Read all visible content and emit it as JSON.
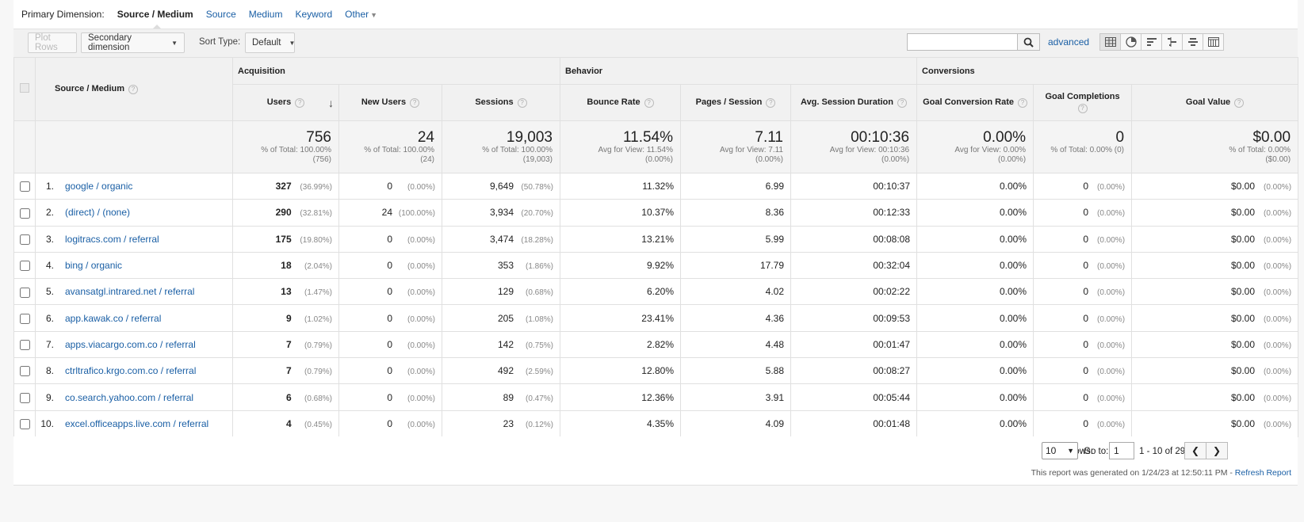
{
  "dimension_bar": {
    "label": "Primary Dimension:",
    "active": "Source / Medium",
    "options": [
      "Source",
      "Medium",
      "Keyword"
    ],
    "other": "Other"
  },
  "toolbar": {
    "plot_rows": "Plot Rows",
    "secondary_dimension": "Secondary dimension",
    "sort_type_label": "Sort Type:",
    "sort_type_value": "Default",
    "search_value": "",
    "advanced": "advanced",
    "view_icons": [
      "table-view-icon",
      "pie-view-icon",
      "performance-view-icon",
      "comparison-view-icon",
      "term-cloud-view-icon",
      "pivot-view-icon"
    ]
  },
  "table": {
    "groups": [
      "Acquisition",
      "Behavior",
      "Conversions"
    ],
    "dimension_header": "Source / Medium",
    "columns": [
      "Users",
      "New Users",
      "Sessions",
      "Bounce Rate",
      "Pages / Session",
      "Avg. Session Duration",
      "Goal Conversion Rate",
      "Goal Completions",
      "Goal Value"
    ],
    "totals": [
      {
        "value": "756",
        "sub1": "% of Total: 100.00%",
        "sub2": "(756)"
      },
      {
        "value": "24",
        "sub1": "% of Total: 100.00%",
        "sub2": "(24)"
      },
      {
        "value": "19,003",
        "sub1": "% of Total: 100.00%",
        "sub2": "(19,003)"
      },
      {
        "value": "11.54%",
        "sub1": "Avg for View: 11.54%",
        "sub2": "(0.00%)"
      },
      {
        "value": "7.11",
        "sub1": "Avg for View: 7.11",
        "sub2": "(0.00%)"
      },
      {
        "value": "00:10:36",
        "sub1": "Avg for View: 00:10:36",
        "sub2": "(0.00%)"
      },
      {
        "value": "0.00%",
        "sub1": "Avg for View: 0.00%",
        "sub2": "(0.00%)"
      },
      {
        "value": "0",
        "sub1": "% of Total: 0.00% (0)",
        "sub2": ""
      },
      {
        "value": "$0.00",
        "sub1": "% of Total: 0.00%",
        "sub2": "($0.00)"
      }
    ],
    "rows": [
      {
        "idx": "1.",
        "name": "google / organic",
        "users": "327",
        "users_pct": "(36.99%)",
        "new_users": "0",
        "new_users_pct": "(0.00%)",
        "sessions": "9,649",
        "sessions_pct": "(50.78%)",
        "bounce": "11.32%",
        "pages": "6.99",
        "duration": "00:10:37",
        "conv_rate": "0.00%",
        "completions": "0",
        "completions_pct": "(0.00%)",
        "goal_value": "$0.00",
        "goal_value_pct": "(0.00%)"
      },
      {
        "idx": "2.",
        "name": "(direct) / (none)",
        "users": "290",
        "users_pct": "(32.81%)",
        "new_users": "24",
        "new_users_pct": "(100.00%)",
        "sessions": "3,934",
        "sessions_pct": "(20.70%)",
        "bounce": "10.37%",
        "pages": "8.36",
        "duration": "00:12:33",
        "conv_rate": "0.00%",
        "completions": "0",
        "completions_pct": "(0.00%)",
        "goal_value": "$0.00",
        "goal_value_pct": "(0.00%)"
      },
      {
        "idx": "3.",
        "name": "logitracs.com / referral",
        "users": "175",
        "users_pct": "(19.80%)",
        "new_users": "0",
        "new_users_pct": "(0.00%)",
        "sessions": "3,474",
        "sessions_pct": "(18.28%)",
        "bounce": "13.21%",
        "pages": "5.99",
        "duration": "00:08:08",
        "conv_rate": "0.00%",
        "completions": "0",
        "completions_pct": "(0.00%)",
        "goal_value": "$0.00",
        "goal_value_pct": "(0.00%)"
      },
      {
        "idx": "4.",
        "name": "bing / organic",
        "users": "18",
        "users_pct": "(2.04%)",
        "new_users": "0",
        "new_users_pct": "(0.00%)",
        "sessions": "353",
        "sessions_pct": "(1.86%)",
        "bounce": "9.92%",
        "pages": "17.79",
        "duration": "00:32:04",
        "conv_rate": "0.00%",
        "completions": "0",
        "completions_pct": "(0.00%)",
        "goal_value": "$0.00",
        "goal_value_pct": "(0.00%)"
      },
      {
        "idx": "5.",
        "name": "avansatgl.intrared.net / referral",
        "users": "13",
        "users_pct": "(1.47%)",
        "new_users": "0",
        "new_users_pct": "(0.00%)",
        "sessions": "129",
        "sessions_pct": "(0.68%)",
        "bounce": "6.20%",
        "pages": "4.02",
        "duration": "00:02:22",
        "conv_rate": "0.00%",
        "completions": "0",
        "completions_pct": "(0.00%)",
        "goal_value": "$0.00",
        "goal_value_pct": "(0.00%)"
      },
      {
        "idx": "6.",
        "name": "app.kawak.co / referral",
        "users": "9",
        "users_pct": "(1.02%)",
        "new_users": "0",
        "new_users_pct": "(0.00%)",
        "sessions": "205",
        "sessions_pct": "(1.08%)",
        "bounce": "23.41%",
        "pages": "4.36",
        "duration": "00:09:53",
        "conv_rate": "0.00%",
        "completions": "0",
        "completions_pct": "(0.00%)",
        "goal_value": "$0.00",
        "goal_value_pct": "(0.00%)"
      },
      {
        "idx": "7.",
        "name": "apps.viacargo.com.co / referral",
        "users": "7",
        "users_pct": "(0.79%)",
        "new_users": "0",
        "new_users_pct": "(0.00%)",
        "sessions": "142",
        "sessions_pct": "(0.75%)",
        "bounce": "2.82%",
        "pages": "4.48",
        "duration": "00:01:47",
        "conv_rate": "0.00%",
        "completions": "0",
        "completions_pct": "(0.00%)",
        "goal_value": "$0.00",
        "goal_value_pct": "(0.00%)"
      },
      {
        "idx": "8.",
        "name": "ctrltrafico.krgo.com.co / referral",
        "users": "7",
        "users_pct": "(0.79%)",
        "new_users": "0",
        "new_users_pct": "(0.00%)",
        "sessions": "492",
        "sessions_pct": "(2.59%)",
        "bounce": "12.80%",
        "pages": "5.88",
        "duration": "00:08:27",
        "conv_rate": "0.00%",
        "completions": "0",
        "completions_pct": "(0.00%)",
        "goal_value": "$0.00",
        "goal_value_pct": "(0.00%)"
      },
      {
        "idx": "9.",
        "name": "co.search.yahoo.com / referral",
        "users": "6",
        "users_pct": "(0.68%)",
        "new_users": "0",
        "new_users_pct": "(0.00%)",
        "sessions": "89",
        "sessions_pct": "(0.47%)",
        "bounce": "12.36%",
        "pages": "3.91",
        "duration": "00:05:44",
        "conv_rate": "0.00%",
        "completions": "0",
        "completions_pct": "(0.00%)",
        "goal_value": "$0.00",
        "goal_value_pct": "(0.00%)"
      },
      {
        "idx": "10.",
        "name": "excel.officeapps.live.com / referral",
        "users": "4",
        "users_pct": "(0.45%)",
        "new_users": "0",
        "new_users_pct": "(0.00%)",
        "sessions": "23",
        "sessions_pct": "(0.12%)",
        "bounce": "4.35%",
        "pages": "4.09",
        "duration": "00:01:48",
        "conv_rate": "0.00%",
        "completions": "0",
        "completions_pct": "(0.00%)",
        "goal_value": "$0.00",
        "goal_value_pct": "(0.00%)"
      }
    ]
  },
  "footer": {
    "show_rows_label": "Show rows:",
    "show_rows_value": "10",
    "goto_label": "Go to:",
    "goto_value": "1",
    "range": "1 - 10 of 29",
    "generated": "This report was generated on 1/24/23 at 12:50:11 PM - ",
    "refresh": "Refresh Report"
  },
  "colors": {
    "link": "#1a5fa5",
    "header_bg": "#f1f1f1",
    "border": "#e0e0e0"
  }
}
